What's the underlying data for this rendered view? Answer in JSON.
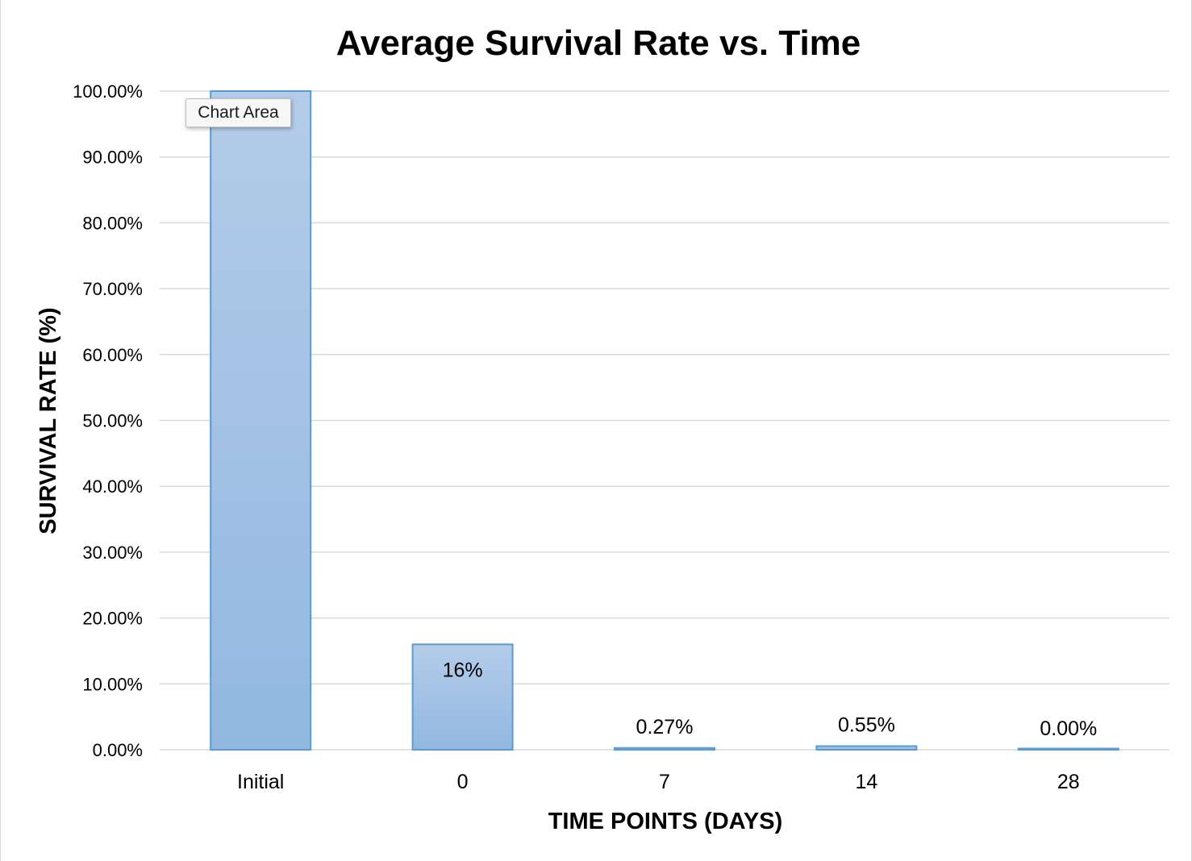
{
  "tooltip": {
    "text": "Chart Area"
  },
  "colors": {
    "bar_fill_top": "#b4cce9",
    "bar_fill_bottom": "#92b8e1",
    "bar_border": "#5b9bd5",
    "gridline": "#d9d9d9"
  },
  "chart_data": {
    "type": "bar",
    "title": "Average Survival Rate vs. Time",
    "xlabel": "TIME POINTS (DAYS)",
    "ylabel": "SURVIVAL RATE (%)",
    "categories": [
      "Initial",
      "0",
      "7",
      "14",
      "28"
    ],
    "values": [
      100.0,
      16.0,
      0.27,
      0.55,
      0.0
    ],
    "data_labels": [
      null,
      "16%",
      "0.27%",
      "0.55%",
      "0.00%"
    ],
    "ylim": [
      0,
      100
    ],
    "yticks": [
      "0.00%",
      "10.00%",
      "20.00%",
      "30.00%",
      "40.00%",
      "50.00%",
      "60.00%",
      "70.00%",
      "80.00%",
      "90.00%",
      "100.00%"
    ],
    "grid": true,
    "legend": "none"
  }
}
